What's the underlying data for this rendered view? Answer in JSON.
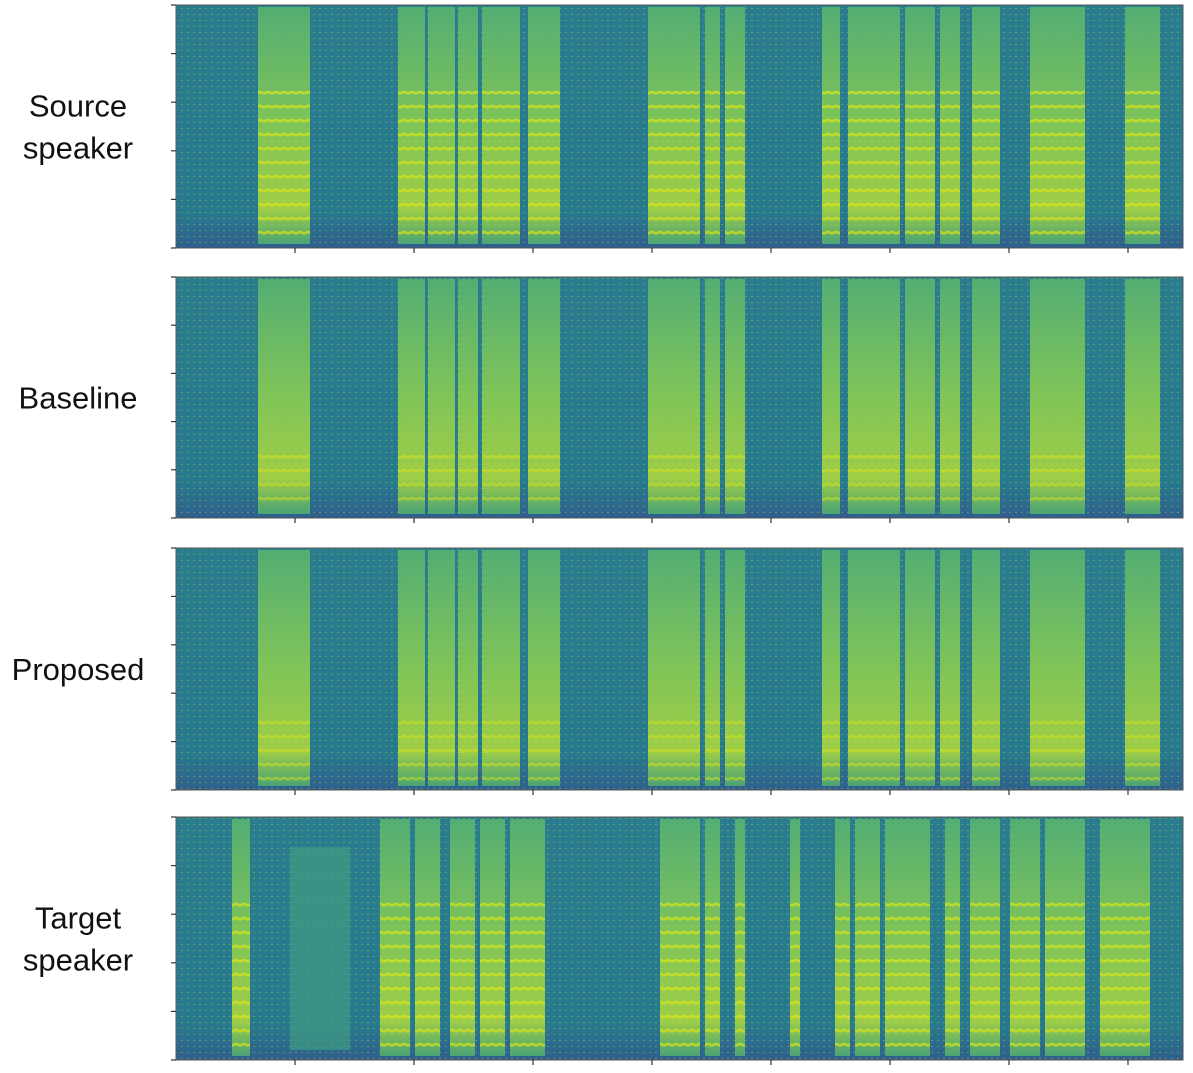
{
  "panels": [
    {
      "label": [
        "Source",
        "speaker"
      ]
    },
    {
      "label": [
        "Baseline"
      ]
    },
    {
      "label": [
        "Proposed"
      ]
    },
    {
      "label": [
        "Target",
        "speaker"
      ]
    }
  ]
}
